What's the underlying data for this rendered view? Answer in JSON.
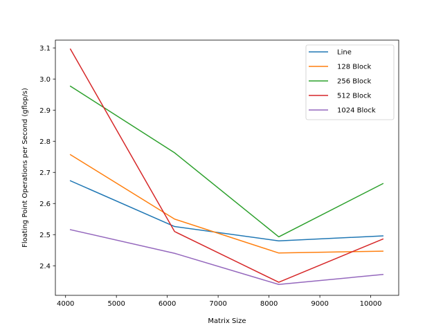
{
  "chart_data": {
    "type": "line",
    "xlabel": "Matrix Size",
    "ylabel": "Floating Point Operations per Second (gflop/s)",
    "x": [
      4096,
      6144,
      8192,
      10240
    ],
    "xlim": [
      3800,
      10550
    ],
    "ylim": [
      2.305,
      3.125
    ],
    "xticks": [
      4000,
      5000,
      6000,
      7000,
      8000,
      9000,
      10000
    ],
    "yticks": [
      2.4,
      2.5,
      2.6,
      2.7,
      2.8,
      2.9,
      3.0,
      3.1
    ],
    "xtick_labels": [
      "4000",
      "5000",
      "6000",
      "7000",
      "8000",
      "9000",
      "10000"
    ],
    "ytick_labels": [
      "2.4",
      "2.5",
      "2.6",
      "2.7",
      "2.8",
      "2.9",
      "3.0",
      "3.1"
    ],
    "grid": false,
    "legend_position": "upper right",
    "series": [
      {
        "name": "Line",
        "color": "#1f77b4",
        "values": [
          2.673,
          2.526,
          2.48,
          2.496
        ]
      },
      {
        "name": "128 Block",
        "color": "#ff7f0e",
        "values": [
          2.757,
          2.55,
          2.441,
          2.447
        ]
      },
      {
        "name": "256 Block",
        "color": "#2ca02c",
        "values": [
          2.977,
          2.763,
          2.493,
          2.664
        ]
      },
      {
        "name": "512 Block",
        "color": "#d62728",
        "values": [
          3.096,
          2.51,
          2.347,
          2.486
        ]
      },
      {
        "name": "1024 Block",
        "color": "#9467bd",
        "values": [
          2.516,
          2.44,
          2.34,
          2.372
        ]
      }
    ]
  }
}
